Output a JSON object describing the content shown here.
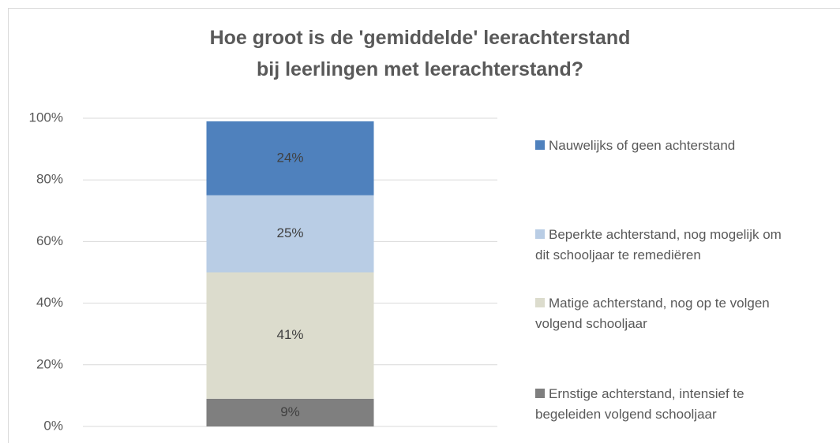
{
  "chart_data": {
    "type": "stacked_bar",
    "title": "Hoe groot is de 'gemiddelde' leerachterstand\nbij leerlingen met leerachterstand?",
    "categories": [
      null
    ],
    "series": [
      {
        "name": "Ernstige achterstand, intensief te begeleiden volgend schooljaar",
        "color": "#7f7f7f",
        "values": [
          9
        ],
        "value_labels": [
          "9%"
        ]
      },
      {
        "name": "Matige achterstand, nog op te volgen volgend schooljaar",
        "color": "#dcdccd",
        "values": [
          41
        ],
        "value_labels": [
          "41%"
        ]
      },
      {
        "name": "Beperkte achterstand, nog mogelijk om dit schooljaar te remediëren",
        "color": "#b9cde5",
        "values": [
          25
        ],
        "value_labels": [
          "25%"
        ]
      },
      {
        "name": "Nauwelijks of geen achterstand",
        "color": "#4f81bd",
        "values": [
          24
        ],
        "value_labels": [
          "24%"
        ]
      }
    ],
    "ylim": [
      0,
      100
    ],
    "yticks": [
      {
        "value": 0,
        "label": "0%"
      },
      {
        "value": 20,
        "label": "20%"
      },
      {
        "value": 40,
        "label": "40%"
      },
      {
        "value": 60,
        "label": "60%"
      },
      {
        "value": 80,
        "label": "80%"
      },
      {
        "value": 100,
        "label": "100%"
      }
    ],
    "grid": true,
    "legend": "right"
  }
}
